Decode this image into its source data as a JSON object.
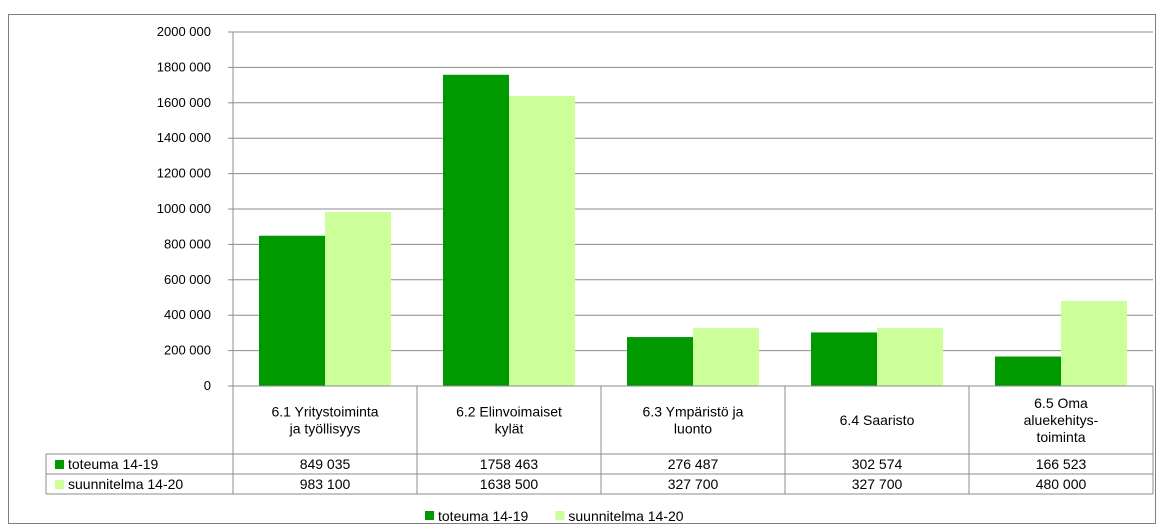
{
  "chart_data": {
    "type": "bar",
    "categories": [
      [
        "6.1  Yritystoiminta",
        "ja työllisyys"
      ],
      [
        "6.2 Elinvoimaiset",
        "kylät"
      ],
      [
        "6.3  Ympäristö ja",
        "luonto"
      ],
      [
        "6.4 Saaristo"
      ],
      [
        "6.5 Oma",
        "aluekehitys-",
        "toiminta"
      ]
    ],
    "series": [
      {
        "name": "toteuma 14-19",
        "color": "#009a00",
        "values": [
          849035,
          1758463,
          276487,
          302574,
          166523
        ],
        "labels": [
          "849 035",
          "1758 463",
          "276 487",
          "302 574",
          "166 523"
        ]
      },
      {
        "name": "suunnitelma 14-20",
        "color": "#ccff99",
        "values": [
          983100,
          1638500,
          327700,
          327700,
          480000
        ],
        "labels": [
          "983 100",
          "1638 500",
          "327 700",
          "327 700",
          "480 000"
        ]
      }
    ],
    "y_ticks": [
      {
        "value": 0,
        "label": "0"
      },
      {
        "value": 200000,
        "label": "200 000"
      },
      {
        "value": 400000,
        "label": "400 000"
      },
      {
        "value": 600000,
        "label": "600 000"
      },
      {
        "value": 800000,
        "label": "800 000"
      },
      {
        "value": 1000000,
        "label": "1000 000"
      },
      {
        "value": 1200000,
        "label": "1200 000"
      },
      {
        "value": 1400000,
        "label": "1400 000"
      },
      {
        "value": 1600000,
        "label": "1600 000"
      },
      {
        "value": 1800000,
        "label": "1800 000"
      },
      {
        "value": 2000000,
        "label": "2000 000"
      }
    ],
    "ylim": [
      0,
      2000000
    ],
    "grid": true,
    "data_table": true,
    "legend_position": "bottom"
  }
}
